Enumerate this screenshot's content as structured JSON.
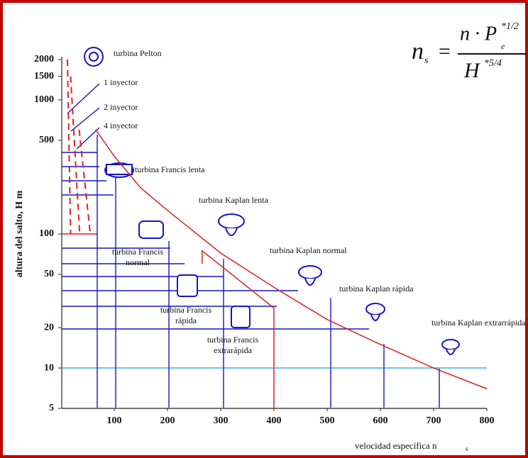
{
  "chart_data": {
    "type": "line",
    "y_label": "altura del salto, H m",
    "x_label": "velocidad específica n",
    "x_label_sub": "s",
    "formula": {
      "lhs": "n",
      "lhs_sub": "s",
      "eq": "=",
      "numerator": "n · P",
      "num_sub": "e",
      "num_sup": "*1/2",
      "denominator": "H",
      "den_sup": "*5/4"
    },
    "annotations": [
      [
        "turbina Pelton"
      ],
      [
        "1 inyector"
      ],
      [
        "2 inyector"
      ],
      [
        "4 inyector"
      ],
      [
        "turbina Francis lenta"
      ],
      [
        "turbina Kaplan lenta"
      ],
      [
        "turbina Francis",
        "normal"
      ],
      [
        "turbina Kaplan normal"
      ],
      [
        "turbina Kaplan rápida"
      ],
      [
        "turbina Francis",
        "rápida"
      ],
      [
        "turbina Francis",
        "extrarápida"
      ],
      [
        "turbina Kaplan extrarrápida"
      ]
    ],
    "log_y": true,
    "xlim": [
      0,
      800
    ],
    "ylim": [
      5,
      2000
    ],
    "xticks": [
      100,
      200,
      300,
      400,
      500,
      600,
      700,
      800
    ],
    "yticks": [
      5,
      10,
      20,
      50,
      100,
      500,
      1000,
      1500,
      2000
    ],
    "series": [
      {
        "color": "#e02020",
        "x": [
          65,
          100,
          150,
          200,
          300,
          400,
          500,
          600,
          700,
          800
        ],
        "values": [
          600,
          380,
          220,
          150,
          72,
          40,
          23,
          15,
          10,
          7
        ]
      },
      {
        "color": "#e02020",
        "x": [
          265,
          265,
          400,
          400
        ],
        "values": [
          60,
          75,
          28,
          5
        ]
      },
      {
        "color": "#e02020",
        "dashed": true,
        "x": [
          12,
          18
        ],
        "values": [
          2000,
          100
        ]
      },
      {
        "color": "#e02020",
        "dashed": true,
        "x": [
          18,
          35
        ],
        "values": [
          1500,
          100
        ]
      },
      {
        "color": "#e02020",
        "dashed": true,
        "x": [
          34,
          55
        ],
        "values": [
          600,
          100
        ]
      }
    ]
  }
}
